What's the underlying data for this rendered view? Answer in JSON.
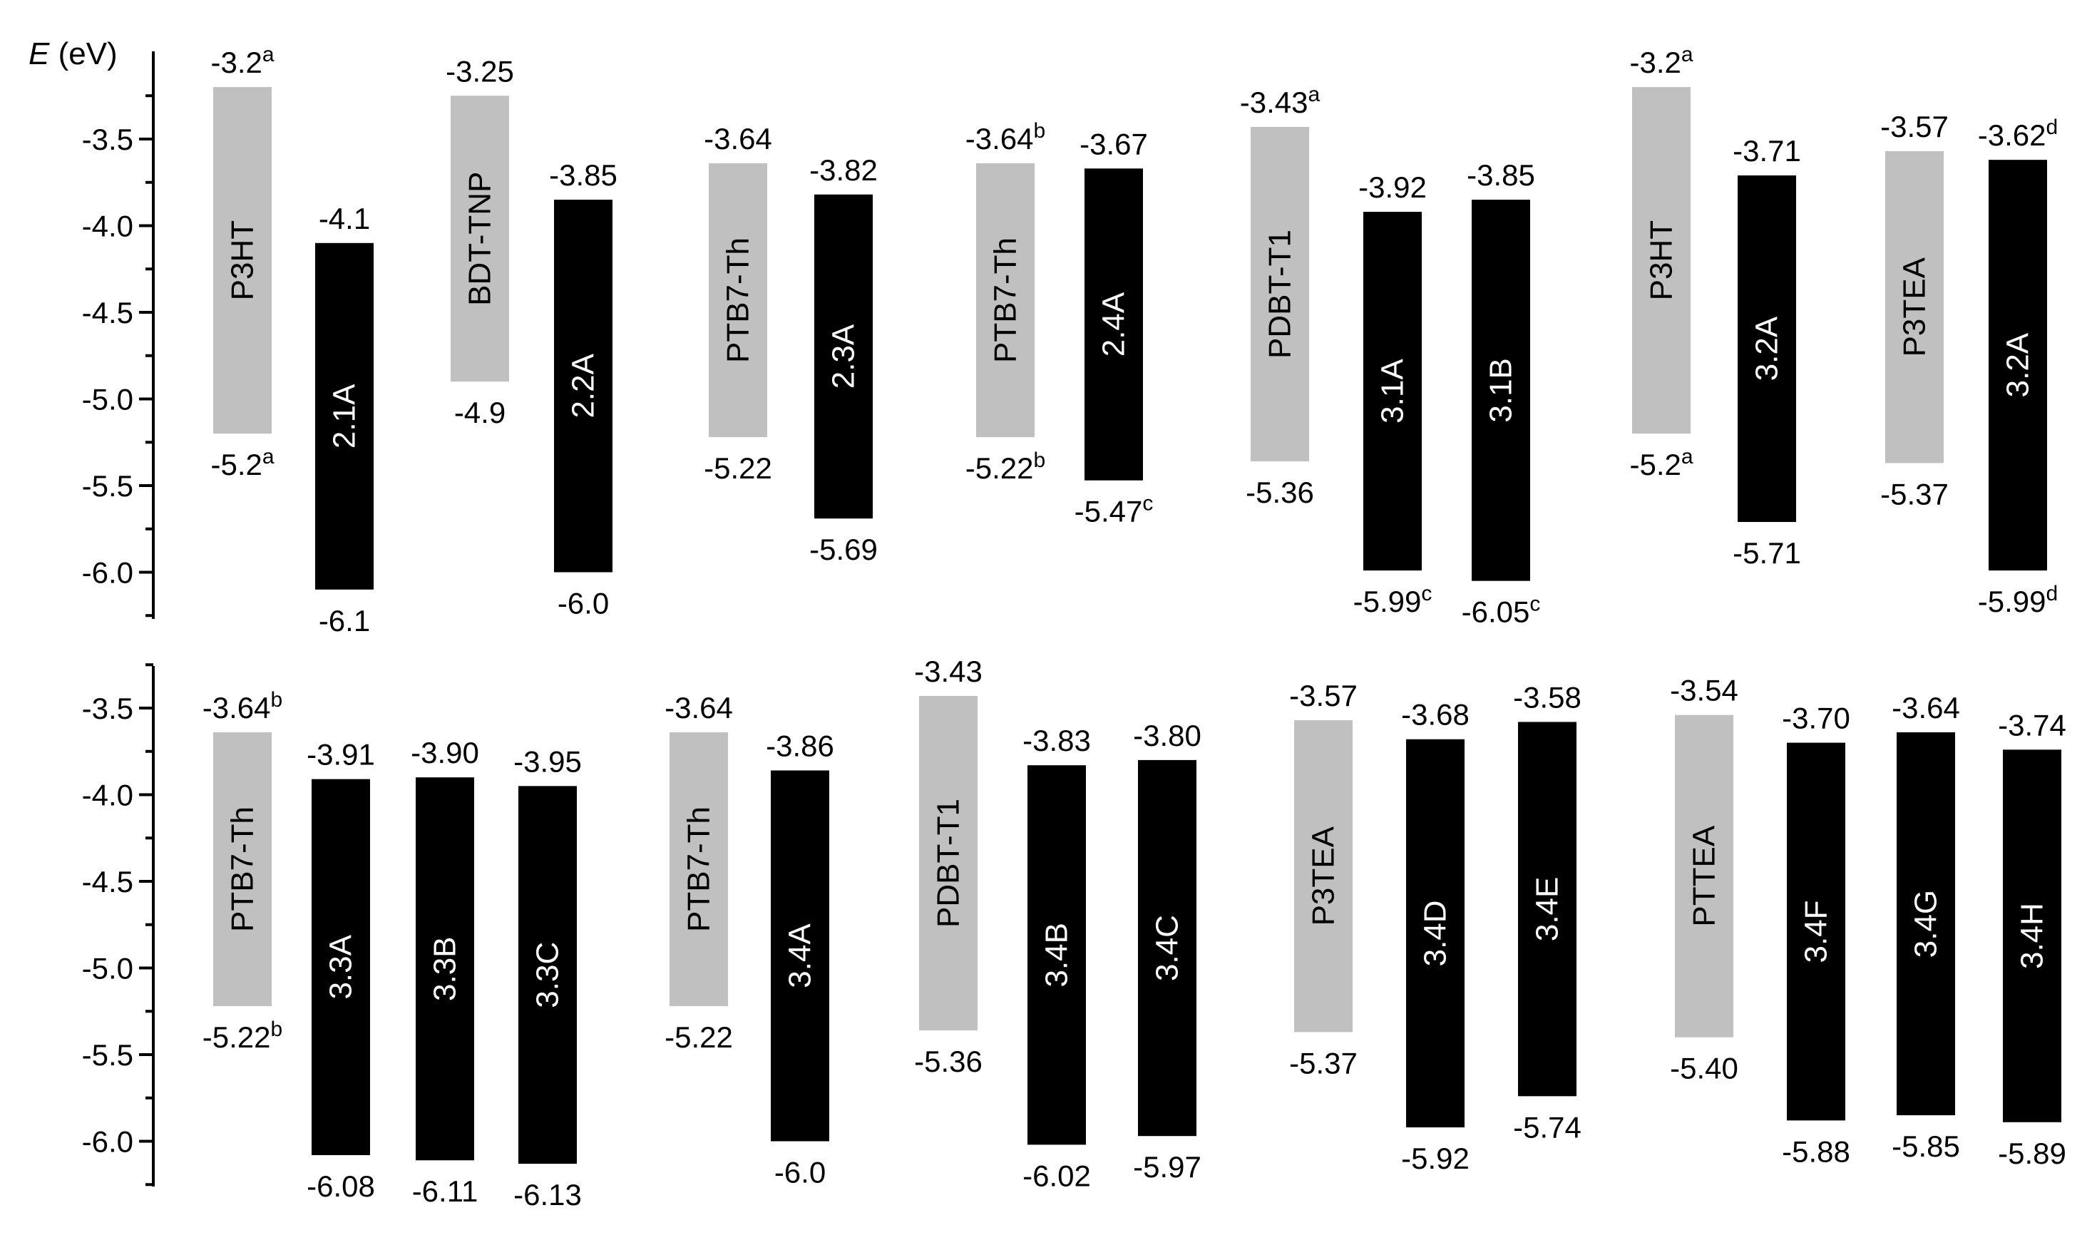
{
  "chart_data": {
    "type": "bar",
    "ylabel": "E (eV)",
    "ylabel_var": "E",
    "ylabel_unit": " (eV)",
    "colors": {
      "donor": "#c0c0c0",
      "acceptor": "#000000",
      "donor_text": "#000000",
      "acceptor_text": "#ffffff"
    },
    "panels": [
      {
        "ylim": [
          -6.25,
          -3.05
        ],
        "yticks": [
          "-3.5",
          "-4.0",
          "-4.5",
          "-5.0",
          "-5.5",
          "-6.0"
        ],
        "bars": [
          {
            "label": "P3HT",
            "role": "donor",
            "top": -3.2,
            "bottom": -5.2,
            "top_text": "-3.2",
            "top_sup": "a",
            "bottom_text": "-5.2",
            "bottom_sup": "a"
          },
          {
            "label": "2.1A",
            "role": "acceptor",
            "top": -4.1,
            "bottom": -6.1,
            "top_text": "-4.1",
            "top_sup": "",
            "bottom_text": "-6.1",
            "bottom_sup": ""
          },
          {
            "label": "BDT-TNP",
            "role": "donor",
            "top": -3.25,
            "bottom": -4.9,
            "top_text": "-3.25",
            "top_sup": "",
            "bottom_text": "-4.9",
            "bottom_sup": ""
          },
          {
            "label": "2.2A",
            "role": "acceptor",
            "top": -3.85,
            "bottom": -6.0,
            "top_text": "-3.85",
            "top_sup": "",
            "bottom_text": "-6.0",
            "bottom_sup": ""
          },
          {
            "label": "PTB7-Th",
            "role": "donor",
            "top": -3.64,
            "bottom": -5.22,
            "top_text": "-3.64",
            "top_sup": "",
            "bottom_text": "-5.22",
            "bottom_sup": ""
          },
          {
            "label": "2.3A",
            "role": "acceptor",
            "top": -3.82,
            "bottom": -5.69,
            "top_text": "-3.82",
            "top_sup": "",
            "bottom_text": "-5.69",
            "bottom_sup": ""
          },
          {
            "label": "PTB7-Th",
            "role": "donor",
            "top": -3.64,
            "bottom": -5.22,
            "top_text": "-3.64",
            "top_sup": "b",
            "bottom_text": "-5.22",
            "bottom_sup": "b"
          },
          {
            "label": "2.4A",
            "role": "acceptor",
            "top": -3.67,
            "bottom": -5.47,
            "top_text": "-3.67",
            "top_sup": "",
            "bottom_text": "-5.47",
            "bottom_sup": "c"
          },
          {
            "label": "PDBT-T1",
            "role": "donor",
            "top": -3.43,
            "bottom": -5.36,
            "top_text": "-3.43",
            "top_sup": "a",
            "bottom_text": "-5.36",
            "bottom_sup": ""
          },
          {
            "label": "3.1A",
            "role": "acceptor",
            "top": -3.92,
            "bottom": -5.99,
            "top_text": "-3.92",
            "top_sup": "",
            "bottom_text": "-5.99",
            "bottom_sup": "c"
          },
          {
            "label": "3.1B",
            "role": "acceptor",
            "top": -3.85,
            "bottom": -6.05,
            "top_text": "-3.85",
            "top_sup": "",
            "bottom_text": "-6.05",
            "bottom_sup": "c"
          },
          {
            "label": "P3HT",
            "role": "donor",
            "top": -3.2,
            "bottom": -5.2,
            "top_text": "-3.2",
            "top_sup": "a",
            "bottom_text": "-5.2",
            "bottom_sup": "a"
          },
          {
            "label": "3.2A",
            "role": "acceptor",
            "top": -3.71,
            "bottom": -5.71,
            "top_text": "-3.71",
            "top_sup": "",
            "bottom_text": "-5.71",
            "bottom_sup": ""
          },
          {
            "label": "P3TEA",
            "role": "donor",
            "top": -3.57,
            "bottom": -5.37,
            "top_text": "-3.57",
            "top_sup": "",
            "bottom_text": "-5.37",
            "bottom_sup": ""
          },
          {
            "label": "3.2A",
            "role": "acceptor",
            "top": -3.62,
            "bottom": -5.99,
            "top_text": "-3.62",
            "top_sup": "d",
            "bottom_text": "-5.99",
            "bottom_sup": "d"
          }
        ]
      },
      {
        "ylim": [
          -6.25,
          -3.25
        ],
        "yticks": [
          "-3.5",
          "-4.0",
          "-4.5",
          "-5.0",
          "-5.5",
          "-6.0"
        ],
        "bars": [
          {
            "label": "PTB7-Th",
            "role": "donor",
            "top": -3.64,
            "bottom": -5.22,
            "top_text": "-3.64",
            "top_sup": "b",
            "bottom_text": "-5.22",
            "bottom_sup": "b"
          },
          {
            "label": "3.3A",
            "role": "acceptor",
            "top": -3.91,
            "bottom": -6.08,
            "top_text": "-3.91",
            "top_sup": "",
            "bottom_text": "-6.08",
            "bottom_sup": ""
          },
          {
            "label": "3.3B",
            "role": "acceptor",
            "top": -3.9,
            "bottom": -6.11,
            "top_text": "-3.90",
            "top_sup": "",
            "bottom_text": "-6.11",
            "bottom_sup": ""
          },
          {
            "label": "3.3C",
            "role": "acceptor",
            "top": -3.95,
            "bottom": -6.13,
            "top_text": "-3.95",
            "top_sup": "",
            "bottom_text": "-6.13",
            "bottom_sup": ""
          },
          {
            "label": "PTB7-Th",
            "role": "donor",
            "top": -3.64,
            "bottom": -5.22,
            "top_text": "-3.64",
            "top_sup": "",
            "bottom_text": "-5.22",
            "bottom_sup": ""
          },
          {
            "label": "3.4A",
            "role": "acceptor",
            "top": -3.86,
            "bottom": -6.0,
            "top_text": "-3.86",
            "top_sup": "",
            "bottom_text": "-6.0",
            "bottom_sup": ""
          },
          {
            "label": "PDBT-T1",
            "role": "donor",
            "top": -3.43,
            "bottom": -5.36,
            "top_text": "-3.43",
            "top_sup": "",
            "bottom_text": "-5.36",
            "bottom_sup": ""
          },
          {
            "label": "3.4B",
            "role": "acceptor",
            "top": -3.83,
            "bottom": -6.02,
            "top_text": "-3.83",
            "top_sup": "",
            "bottom_text": "-6.02",
            "bottom_sup": ""
          },
          {
            "label": "3.4C",
            "role": "acceptor",
            "top": -3.8,
            "bottom": -5.97,
            "top_text": "-3.80",
            "top_sup": "",
            "bottom_text": "-5.97",
            "bottom_sup": ""
          },
          {
            "label": "P3TEA",
            "role": "donor",
            "top": -3.57,
            "bottom": -5.37,
            "top_text": "-3.57",
            "top_sup": "",
            "bottom_text": "-5.37",
            "bottom_sup": ""
          },
          {
            "label": "3.4D",
            "role": "acceptor",
            "top": -3.68,
            "bottom": -5.92,
            "top_text": "-3.68",
            "top_sup": "",
            "bottom_text": "-5.92",
            "bottom_sup": ""
          },
          {
            "label": "3.4E",
            "role": "acceptor",
            "top": -3.58,
            "bottom": -5.74,
            "top_text": "-3.58",
            "top_sup": "",
            "bottom_text": "-5.74",
            "bottom_sup": ""
          },
          {
            "label": "PTTEA",
            "role": "donor",
            "top": -3.54,
            "bottom": -5.4,
            "top_text": "-3.54",
            "top_sup": "",
            "bottom_text": "-5.40",
            "bottom_sup": ""
          },
          {
            "label": "3.4F",
            "role": "acceptor",
            "top": -3.7,
            "bottom": -5.88,
            "top_text": "-3.70",
            "top_sup": "",
            "bottom_text": "-5.88",
            "bottom_sup": ""
          },
          {
            "label": "3.4G",
            "role": "acceptor",
            "top": -3.64,
            "bottom": -5.85,
            "top_text": "-3.64",
            "top_sup": "",
            "bottom_text": "-5.85",
            "bottom_sup": ""
          },
          {
            "label": "3.4H",
            "role": "acceptor",
            "top": -3.74,
            "bottom": -5.89,
            "top_text": "-3.74",
            "top_sup": "",
            "bottom_text": "-5.89",
            "bottom_sup": ""
          }
        ]
      }
    ]
  }
}
